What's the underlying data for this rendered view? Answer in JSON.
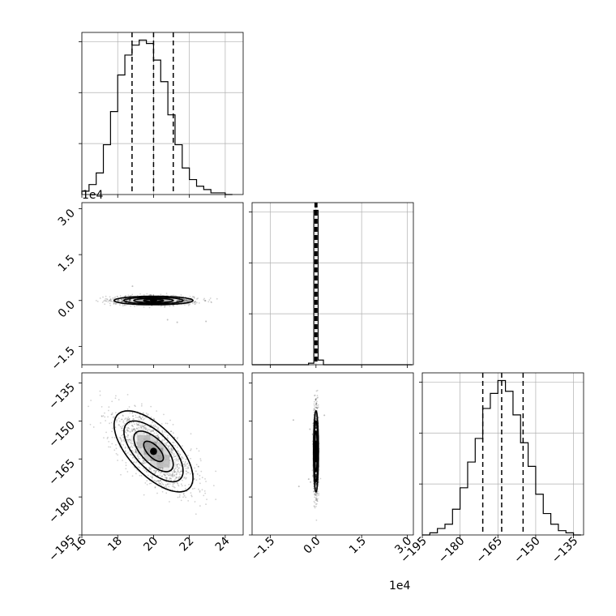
{
  "chart_data": {
    "type": "corner",
    "axis_units": {
      "p1": "",
      "p2": "1e4",
      "p3": ""
    },
    "ticks": {
      "p1": [
        16,
        18,
        20,
        22,
        24
      ],
      "p2": [
        -1.5,
        0.0,
        1.5,
        3.0
      ],
      "p3": [
        -195,
        -180,
        -165,
        -150,
        -135
      ]
    },
    "tick_labels": {
      "p1": [
        "16",
        "18",
        "20",
        "22",
        "24"
      ],
      "p2": [
        "−1.5",
        "0.0",
        "1.5",
        "3.0"
      ],
      "p3": [
        "−195",
        "−180",
        "−165",
        "−150",
        "−135"
      ]
    },
    "y_tick_labels_p2": [
      "−1.5",
      "0.0",
      "1.5",
      "3.0"
    ],
    "y_tick_labels_p3": [
      "−195",
      "−180",
      "−165",
      "−150",
      "−135"
    ],
    "ranges": {
      "p1": [
        16,
        25
      ],
      "p2": [
        -2.1,
        3.2
      ],
      "p3": [
        -195,
        -131
      ]
    },
    "grid": true,
    "marginals": [
      {
        "param": "p1",
        "bin_edges": [
          16.0,
          16.4,
          16.8,
          17.2,
          17.6,
          18.0,
          18.4,
          18.8,
          19.2,
          19.6,
          20.0,
          20.4,
          20.8,
          21.2,
          21.6,
          22.0,
          22.4,
          22.8,
          23.2,
          23.6,
          24.0,
          24.4
        ],
        "counts": [
          2,
          6,
          13,
          30,
          50,
          72,
          84,
          90,
          93,
          91,
          81,
          68,
          48,
          30,
          16,
          9,
          5,
          3,
          1,
          1,
          0
        ],
        "quantiles": [
          18.8,
          20.0,
          21.1
        ]
      },
      {
        "param": "p2",
        "bin_edges": [
          -2.1,
          -1.835,
          -1.57,
          -1.305,
          -1.04,
          -0.775,
          -0.51,
          -0.245,
          -0.07,
          0.07,
          0.245,
          0.51,
          0.775,
          1.04,
          1.305,
          1.57,
          1.835,
          2.1,
          2.365,
          2.63,
          2.895,
          3.16
        ],
        "counts": [
          0,
          0,
          0,
          0,
          0,
          0,
          0,
          1,
          100,
          3,
          0,
          0,
          0,
          0,
          0,
          0,
          0,
          0,
          0,
          0,
          0
        ],
        "quantiles": [
          -0.03,
          0.0,
          0.03
        ]
      },
      {
        "param": "p3",
        "bin_edges": [
          -195,
          -192,
          -189,
          -186,
          -183,
          -180,
          -177,
          -174,
          -171,
          -168,
          -165,
          -162,
          -159,
          -156,
          -153,
          -150,
          -147,
          -144,
          -141,
          -138,
          -135,
          -132
        ],
        "counts": [
          0,
          1,
          3,
          5,
          12,
          22,
          34,
          45,
          59,
          66,
          72,
          67,
          56,
          43,
          32,
          19,
          10,
          5,
          2,
          1,
          0
        ],
        "quantiles": [
          -171,
          -163.5,
          -155
        ]
      }
    ],
    "scatter": [
      {
        "x_param": "p1",
        "y_param": "p2",
        "center": [
          20.0,
          0.0
        ],
        "sigma": [
          1.1,
          0.07
        ],
        "rho": 0.0
      },
      {
        "x_param": "p1",
        "y_param": "p3",
        "center": [
          20.0,
          -162.0
        ],
        "sigma": [
          1.1,
          8.0
        ],
        "rho": -0.65
      },
      {
        "x_param": "p2",
        "y_param": "p3",
        "center": [
          0.0,
          -162.0
        ],
        "sigma": [
          0.04,
          8.0
        ],
        "rho": 0.0
      }
    ],
    "contour_levels_sigma": [
      0.5,
      1.0,
      1.5,
      2.0
    ]
  }
}
